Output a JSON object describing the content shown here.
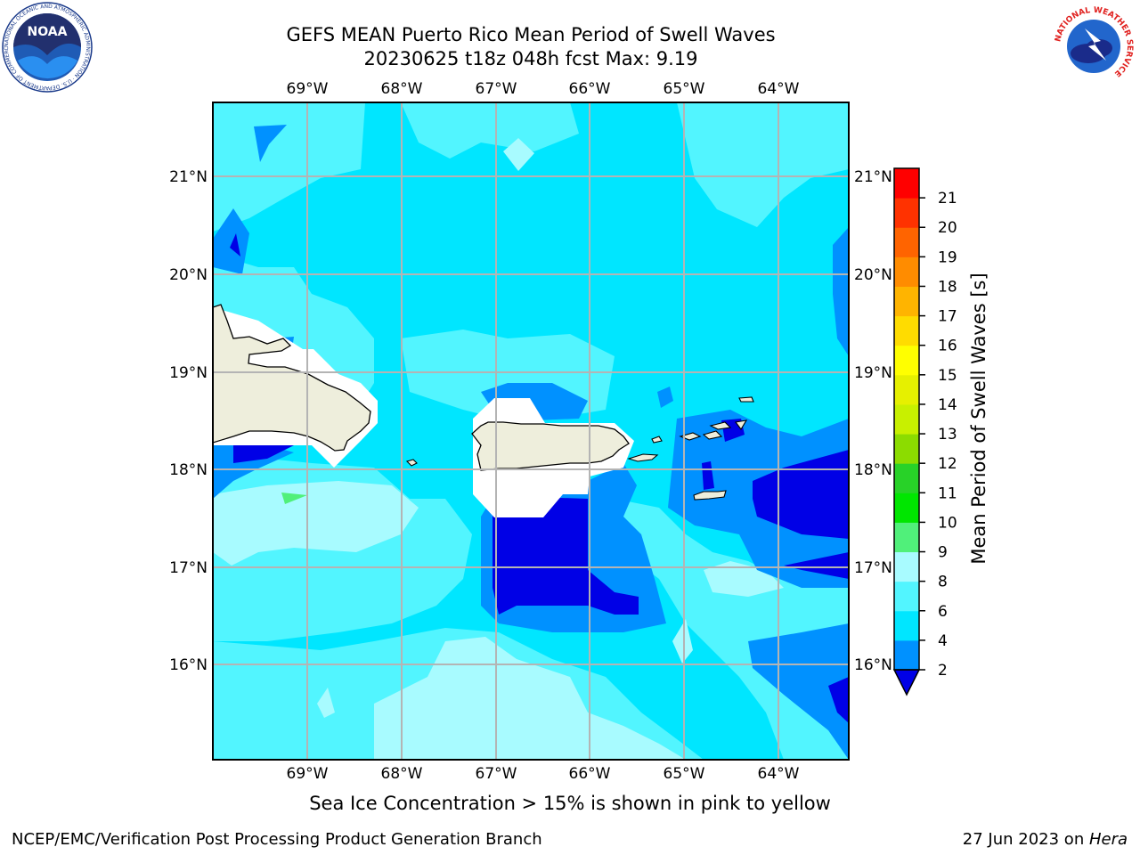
{
  "header": {
    "title_line1": "GEFS MEAN Puerto Rico Mean Period of Swell Waves",
    "title_line2": "20230625 t18z 048h fcst   Max: 9.19",
    "left_logo_text": "NOAA",
    "left_logo_ring_text": "NATIONAL OCEANIC AND ATMOSPHERIC ADMINISTRATION · U.S. DEPARTMENT OF COMMERCE",
    "right_logo_ring_text": "NATIONAL WEATHER SERVICE"
  },
  "map": {
    "lon_labels": [
      "69°W",
      "68°W",
      "67°W",
      "66°W",
      "65°W",
      "64°W"
    ],
    "lat_labels": [
      "21°N",
      "20°N",
      "19°N",
      "18°N",
      "17°N",
      "16°N"
    ],
    "colors": {
      "c2_4": "#0091ff",
      "c4_6": "#00e6ff",
      "c6_8": "#52f5ff",
      "c8_9": "#a8fbff",
      "c9_10": "#50f07a",
      "below2": "#0000e6",
      "land": "#eeeedc",
      "grid": "#b4b4b4"
    }
  },
  "colorbar": {
    "label": "Mean Period of Swell Waves [s]",
    "ticks": [
      "2",
      "4",
      "6",
      "8",
      "9",
      "10",
      "11",
      "12",
      "13",
      "14",
      "15",
      "16",
      "17",
      "18",
      "19",
      "20",
      "21"
    ],
    "colors": [
      "#0091ff",
      "#00e6ff",
      "#52f5ff",
      "#a8fbff",
      "#50f07a",
      "#00e600",
      "#28d228",
      "#8cdc00",
      "#c8f000",
      "#e6f000",
      "#ffff00",
      "#ffdc00",
      "#ffb400",
      "#ff8c00",
      "#ff6400",
      "#ff3200",
      "#ff0000"
    ],
    "extend_color": "#0000e6"
  },
  "footer": {
    "note": "Sea Ice Concentration > 15% is shown in pink to yellow",
    "left": "NCEP/EMC/Verification Post Processing Product Generation Branch",
    "right_date": "27 Jun 2023 on ",
    "right_host": "Hera"
  }
}
